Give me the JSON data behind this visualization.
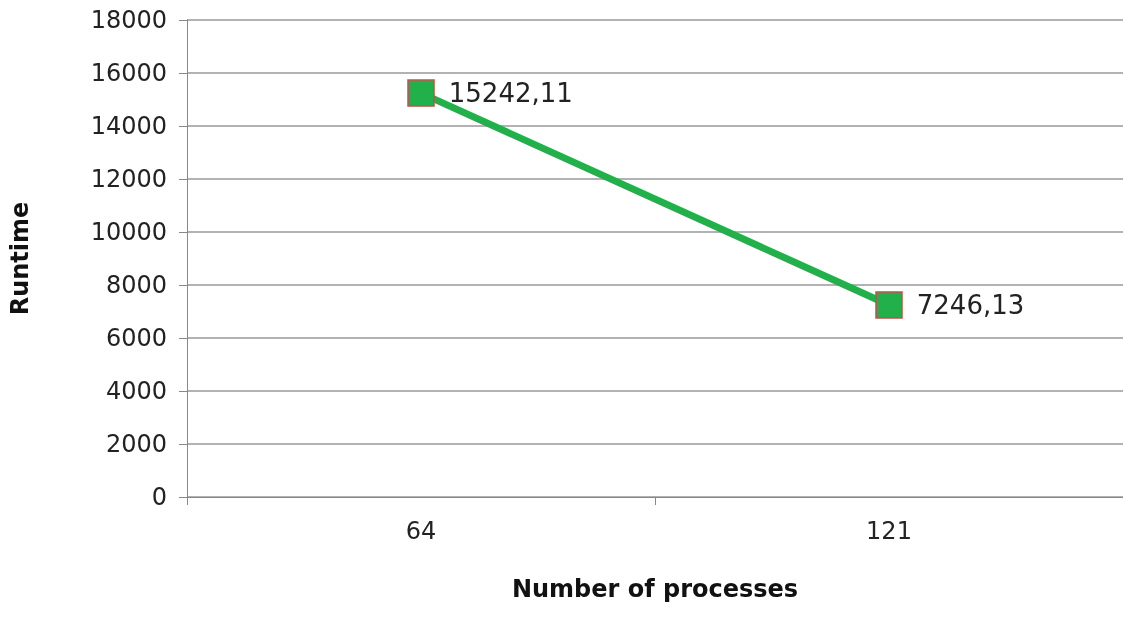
{
  "chart_data": {
    "type": "line",
    "xlabel": "Number of processes",
    "ylabel": "Runtime",
    "categories": [
      "64",
      "121"
    ],
    "series": [
      {
        "color": "#22b04b",
        "values": [
          15242.11,
          7246.13
        ],
        "value_labels": [
          "15242,11",
          "7246,13"
        ]
      }
    ],
    "ylim": [
      0,
      18000
    ],
    "yticks": [
      0,
      2000,
      4000,
      6000,
      8000,
      10000,
      12000,
      14000,
      16000,
      18000
    ],
    "grid": "y",
    "marker": "square",
    "line_style": "solid"
  }
}
